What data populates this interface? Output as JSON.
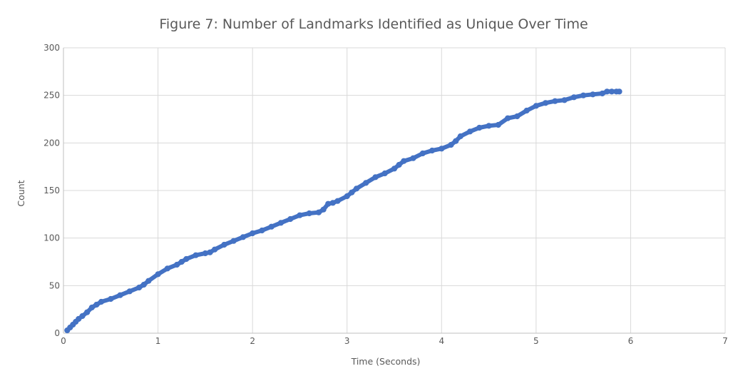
{
  "chart_data": {
    "type": "scatter",
    "title": "Figure 7: Number of Landmarks Identified as Unique Over Time",
    "xlabel": "Time (Seconds)",
    "ylabel": "Count",
    "xlim": [
      0,
      7
    ],
    "ylim": [
      0,
      300
    ],
    "x_ticks": [
      0,
      1,
      2,
      3,
      4,
      5,
      6,
      7
    ],
    "y_ticks": [
      0,
      50,
      100,
      150,
      200,
      250,
      300
    ],
    "grid": true,
    "legend": "none",
    "series": [
      {
        "color": "#4472c4",
        "marker": "circle",
        "points": [
          [
            0.04,
            3
          ],
          [
            0.07,
            6
          ],
          [
            0.1,
            9
          ],
          [
            0.13,
            12
          ],
          [
            0.16,
            15
          ],
          [
            0.2,
            18
          ],
          [
            0.25,
            22
          ],
          [
            0.3,
            27
          ],
          [
            0.35,
            30
          ],
          [
            0.4,
            33
          ],
          [
            0.5,
            36
          ],
          [
            0.6,
            40
          ],
          [
            0.7,
            44
          ],
          [
            0.8,
            48
          ],
          [
            0.85,
            51
          ],
          [
            0.9,
            55
          ],
          [
            1.0,
            62
          ],
          [
            1.1,
            68
          ],
          [
            1.2,
            72
          ],
          [
            1.25,
            75
          ],
          [
            1.3,
            78
          ],
          [
            1.4,
            82
          ],
          [
            1.5,
            84
          ],
          [
            1.55,
            85
          ],
          [
            1.6,
            88
          ],
          [
            1.7,
            93
          ],
          [
            1.8,
            97
          ],
          [
            1.9,
            101
          ],
          [
            2.0,
            105
          ],
          [
            2.1,
            108
          ],
          [
            2.2,
            112
          ],
          [
            2.3,
            116
          ],
          [
            2.4,
            120
          ],
          [
            2.5,
            124
          ],
          [
            2.6,
            126
          ],
          [
            2.7,
            127
          ],
          [
            2.75,
            130
          ],
          [
            2.8,
            136
          ],
          [
            2.85,
            137
          ],
          [
            2.9,
            139
          ],
          [
            3.0,
            144
          ],
          [
            3.05,
            148
          ],
          [
            3.1,
            152
          ],
          [
            3.2,
            158
          ],
          [
            3.3,
            164
          ],
          [
            3.4,
            168
          ],
          [
            3.5,
            173
          ],
          [
            3.55,
            177
          ],
          [
            3.6,
            181
          ],
          [
            3.7,
            184
          ],
          [
            3.8,
            189
          ],
          [
            3.9,
            192
          ],
          [
            4.0,
            194
          ],
          [
            4.1,
            198
          ],
          [
            4.15,
            202
          ],
          [
            4.2,
            207
          ],
          [
            4.3,
            212
          ],
          [
            4.4,
            216
          ],
          [
            4.5,
            218
          ],
          [
            4.6,
            219
          ],
          [
            4.7,
            226
          ],
          [
            4.8,
            228
          ],
          [
            4.9,
            234
          ],
          [
            5.0,
            239
          ],
          [
            5.1,
            242
          ],
          [
            5.2,
            244
          ],
          [
            5.3,
            245
          ],
          [
            5.4,
            248
          ],
          [
            5.5,
            250
          ],
          [
            5.6,
            251
          ],
          [
            5.7,
            252
          ],
          [
            5.75,
            254
          ],
          [
            5.8,
            254
          ],
          [
            5.85,
            254
          ],
          [
            5.88,
            254
          ]
        ]
      }
    ]
  }
}
